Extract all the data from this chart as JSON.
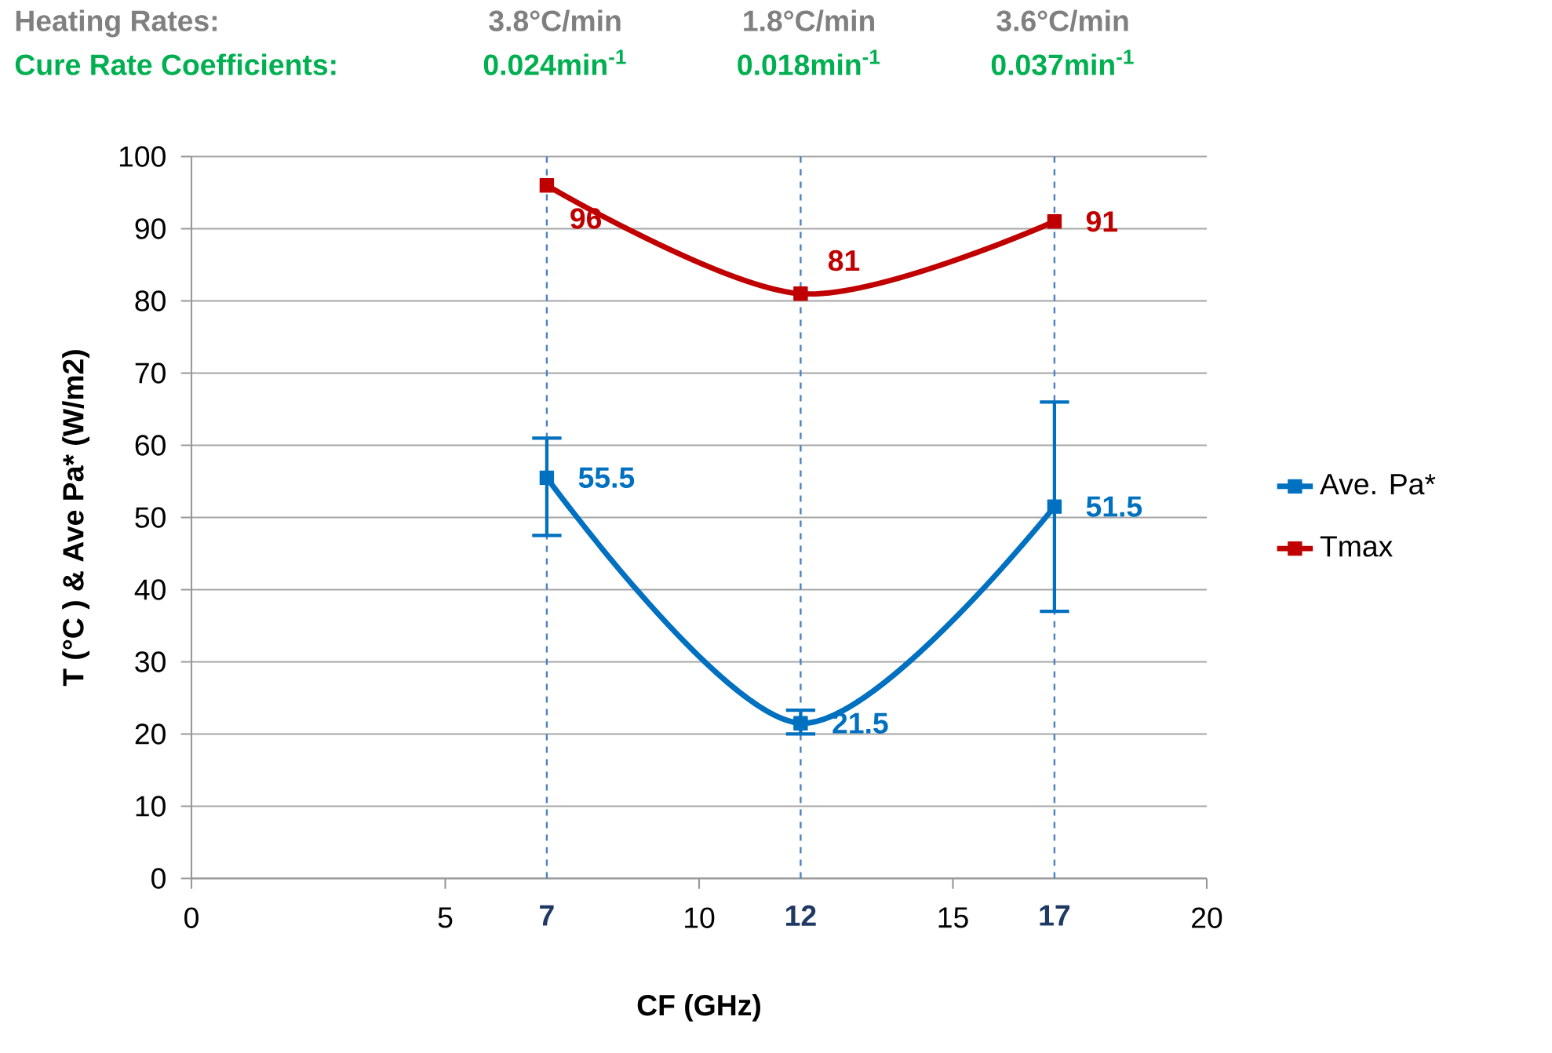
{
  "chart_data": {
    "type": "line",
    "xlabel": "CF (GHz)",
    "ylabel": "T (°C ) & Ave Pa* (W/m2)",
    "annotations": [
      "Heating Rates:",
      "3.8°C/min",
      "1.8°C/min",
      "3.6°C/min",
      "Cure Rate Coefficients:",
      "0.024min$^{-1}$",
      "0.018min$^{-1}$",
      "0.037min$^{-1}$"
    ],
    "x": [
      7,
      12,
      17
    ],
    "series": [
      {
        "name": "Ave. Pa*",
        "color": "#0070c0",
        "values": [
          55.5,
          21.5,
          51.5
        ],
        "errors": [
          [
            47.5,
            61
          ],
          [
            20,
            23.3
          ],
          [
            37,
            66
          ]
        ]
      },
      {
        "name": "Tmax",
        "color": "#c00000",
        "values": [
          96,
          81,
          91
        ]
      }
    ],
    "data_labels": true,
    "xlim": [
      0,
      20
    ],
    "ylim": [
      0,
      100
    ],
    "xticks": [
      0,
      5,
      10,
      15,
      20
    ],
    "yticks": [
      0,
      10,
      20,
      30,
      40,
      50,
      60,
      70,
      80,
      90,
      100
    ],
    "ref_lines": [
      {
        "axis": "x",
        "value": 7,
        "label": "7",
        "color": "#4f81bd",
        "line_style": "dashed"
      },
      {
        "axis": "x",
        "value": 12,
        "label": "12",
        "color": "#4f81bd",
        "line_style": "dashed"
      },
      {
        "axis": "x",
        "value": 17,
        "label": "17",
        "color": "#4f81bd",
        "line_style": "dashed"
      }
    ],
    "grid": "y",
    "legend": "right",
    "marker": "square",
    "line_style": "solid"
  }
}
